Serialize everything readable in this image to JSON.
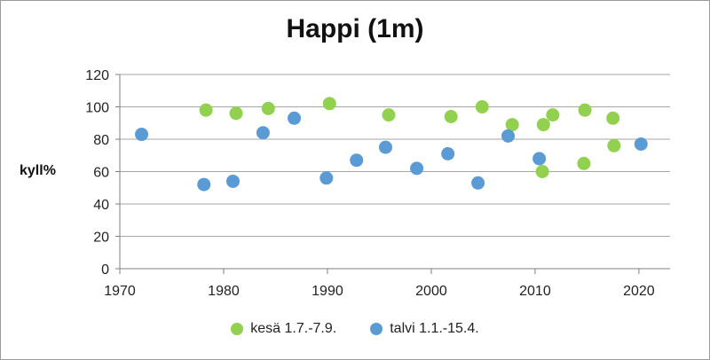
{
  "chart_data": {
    "type": "scatter",
    "title": "Happi (1m)",
    "ylabel": "kyll%",
    "xlabel": "",
    "xlim": [
      1970,
      2023
    ],
    "ylim": [
      0,
      120
    ],
    "x_ticks": [
      1970,
      1980,
      1990,
      2000,
      2010,
      2020
    ],
    "y_ticks": [
      0,
      20,
      40,
      60,
      80,
      100,
      120
    ],
    "grid": "horizontal",
    "legend_position": "bottom",
    "series": [
      {
        "name": "kesä 1.7.-7.9.",
        "color": "#92D050",
        "points": [
          {
            "x": 1978.3,
            "y": 98
          },
          {
            "x": 1981.2,
            "y": 96
          },
          {
            "x": 1984.3,
            "y": 99
          },
          {
            "x": 1990.2,
            "y": 102
          },
          {
            "x": 1995.9,
            "y": 95
          },
          {
            "x": 2001.9,
            "y": 94
          },
          {
            "x": 2004.9,
            "y": 100
          },
          {
            "x": 2007.8,
            "y": 89
          },
          {
            "x": 2010.7,
            "y": 60
          },
          {
            "x": 2010.8,
            "y": 89
          },
          {
            "x": 2011.7,
            "y": 95
          },
          {
            "x": 2014.7,
            "y": 65
          },
          {
            "x": 2014.8,
            "y": 98
          },
          {
            "x": 2017.5,
            "y": 93
          },
          {
            "x": 2017.6,
            "y": 76
          }
        ]
      },
      {
        "name": "talvi 1.1.-15.4.",
        "color": "#5B9BD5",
        "points": [
          {
            "x": 1972.1,
            "y": 83
          },
          {
            "x": 1978.1,
            "y": 52
          },
          {
            "x": 1980.9,
            "y": 54
          },
          {
            "x": 1983.8,
            "y": 84
          },
          {
            "x": 1986.8,
            "y": 93
          },
          {
            "x": 1989.9,
            "y": 56
          },
          {
            "x": 1992.8,
            "y": 67
          },
          {
            "x": 1995.6,
            "y": 75
          },
          {
            "x": 1998.6,
            "y": 62
          },
          {
            "x": 2001.6,
            "y": 71
          },
          {
            "x": 2004.5,
            "y": 53
          },
          {
            "x": 2007.4,
            "y": 82
          },
          {
            "x": 2010.4,
            "y": 68
          },
          {
            "x": 2020.2,
            "y": 77
          }
        ]
      }
    ]
  }
}
